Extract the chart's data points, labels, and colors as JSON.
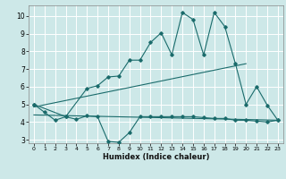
{
  "xlabel": "Humidex (Indice chaleur)",
  "xlim": [
    -0.5,
    23.5
  ],
  "ylim": [
    2.8,
    10.6
  ],
  "xticks": [
    0,
    1,
    2,
    3,
    4,
    5,
    6,
    7,
    8,
    9,
    10,
    11,
    12,
    13,
    14,
    15,
    16,
    17,
    18,
    19,
    20,
    21,
    22,
    23
  ],
  "yticks": [
    3,
    4,
    5,
    6,
    7,
    8,
    9,
    10
  ],
  "bg_color": "#cde8e8",
  "line_color": "#1a6b6b",
  "grid_color": "#ffffff",
  "line1_x": [
    0,
    1,
    2,
    3,
    4,
    5,
    6,
    7,
    8,
    9,
    10,
    11,
    12,
    13,
    14,
    15,
    16,
    17,
    18,
    19,
    20,
    21,
    22,
    23
  ],
  "line1_y": [
    5.0,
    4.55,
    4.1,
    4.3,
    4.15,
    4.35,
    4.3,
    2.9,
    2.85,
    3.4,
    4.3,
    4.3,
    4.3,
    4.3,
    4.3,
    4.3,
    4.25,
    4.2,
    4.2,
    4.1,
    4.1,
    4.05,
    4.0,
    4.1
  ],
  "line2_x": [
    0,
    3,
    5,
    6,
    7,
    8,
    9,
    10,
    11,
    12,
    13,
    14,
    15,
    16,
    17,
    18,
    19,
    20,
    21,
    22,
    23
  ],
  "line2_y": [
    5.0,
    4.3,
    5.9,
    6.05,
    6.55,
    6.6,
    7.5,
    7.5,
    8.5,
    9.05,
    7.8,
    10.2,
    9.8,
    7.8,
    10.2,
    9.4,
    7.3,
    5.0,
    6.0,
    4.95,
    4.1
  ],
  "line3_x": [
    0,
    20
  ],
  "line3_y": [
    4.85,
    7.3
  ],
  "line4_x": [
    0,
    23
  ],
  "line4_y": [
    4.4,
    4.1
  ]
}
